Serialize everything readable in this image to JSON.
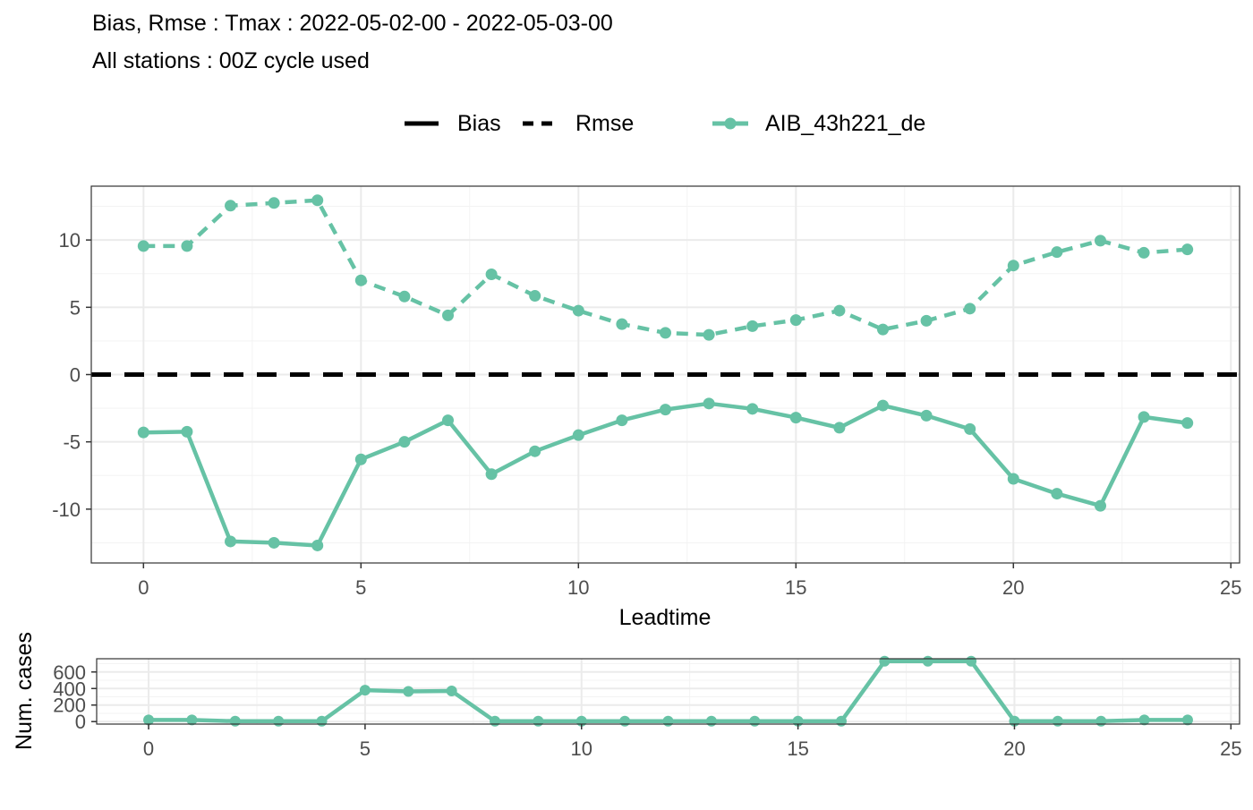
{
  "chart_data": [
    {
      "type": "line",
      "title": "Bias, Rmse : Tmax : 2022-05-02-00 - 2022-05-03-00",
      "subtitle": "All stations : 00Z cycle used",
      "xlabel": "Leadtime",
      "ylabel": "",
      "xlim": [
        -1.2,
        25.2
      ],
      "ylim": [
        -14,
        14
      ],
      "x_ticks": [
        0,
        5,
        10,
        15,
        20,
        25
      ],
      "y_ticks": [
        -10,
        -5,
        0,
        5,
        10
      ],
      "y_tick_labels": [
        "-10",
        "-5",
        "0",
        "5",
        "10"
      ],
      "grid": true,
      "legend_position": "top",
      "legend": {
        "linetypes": [
          {
            "label": "Bias",
            "style": "solid"
          },
          {
            "label": "Rmse",
            "style": "dashed"
          }
        ],
        "models": [
          {
            "label": "AIB_43h221_de",
            "color": "#66c2a5"
          }
        ]
      },
      "reference_line": {
        "y": 0,
        "style": "dashed",
        "color": "#000000"
      },
      "x": [
        0,
        1,
        2,
        3,
        4,
        5,
        6,
        7,
        8,
        9,
        10,
        11,
        12,
        13,
        14,
        15,
        16,
        17,
        18,
        19,
        20,
        21,
        22,
        23,
        24
      ],
      "series": [
        {
          "metric": "Bias",
          "model": "AIB_43h221_de",
          "style": "solid",
          "color": "#66c2a5",
          "values": [
            -4.3,
            -4.25,
            -12.4,
            -12.5,
            -12.7,
            -6.3,
            -5.0,
            -3.4,
            -7.4,
            -5.7,
            -4.5,
            -3.4,
            -2.6,
            -2.15,
            -2.55,
            -3.2,
            -3.95,
            -2.3,
            -3.05,
            -4.05,
            -7.75,
            -8.85,
            -9.75,
            -3.15,
            -3.6
          ]
        },
        {
          "metric": "Rmse",
          "model": "AIB_43h221_de",
          "style": "dashed",
          "color": "#66c2a5",
          "values": [
            9.55,
            9.55,
            12.55,
            12.75,
            12.95,
            7.0,
            5.8,
            4.4,
            7.45,
            5.85,
            4.75,
            3.75,
            3.1,
            2.95,
            3.6,
            4.05,
            4.75,
            3.35,
            4.0,
            4.9,
            8.1,
            9.1,
            9.95,
            9.05,
            9.3
          ]
        }
      ]
    },
    {
      "type": "line",
      "title": "",
      "xlabel": "",
      "ylabel": "Num. cases",
      "xlim": [
        -1.2,
        25.2
      ],
      "ylim": [
        -30,
        760
      ],
      "x_ticks": [
        0,
        5,
        10,
        15,
        20,
        25
      ],
      "y_ticks": [
        0,
        200,
        400,
        600
      ],
      "grid": true,
      "x": [
        0,
        1,
        2,
        3,
        4,
        5,
        6,
        7,
        8,
        9,
        10,
        11,
        12,
        13,
        14,
        15,
        16,
        17,
        18,
        19,
        20,
        21,
        22,
        23,
        24
      ],
      "series": [
        {
          "model": "AIB_43h221_de",
          "color": "#66c2a5",
          "values": [
            20,
            20,
            5,
            5,
            5,
            380,
            365,
            370,
            5,
            5,
            5,
            5,
            5,
            5,
            5,
            5,
            5,
            730,
            730,
            730,
            5,
            5,
            5,
            20,
            20
          ]
        }
      ]
    }
  ]
}
